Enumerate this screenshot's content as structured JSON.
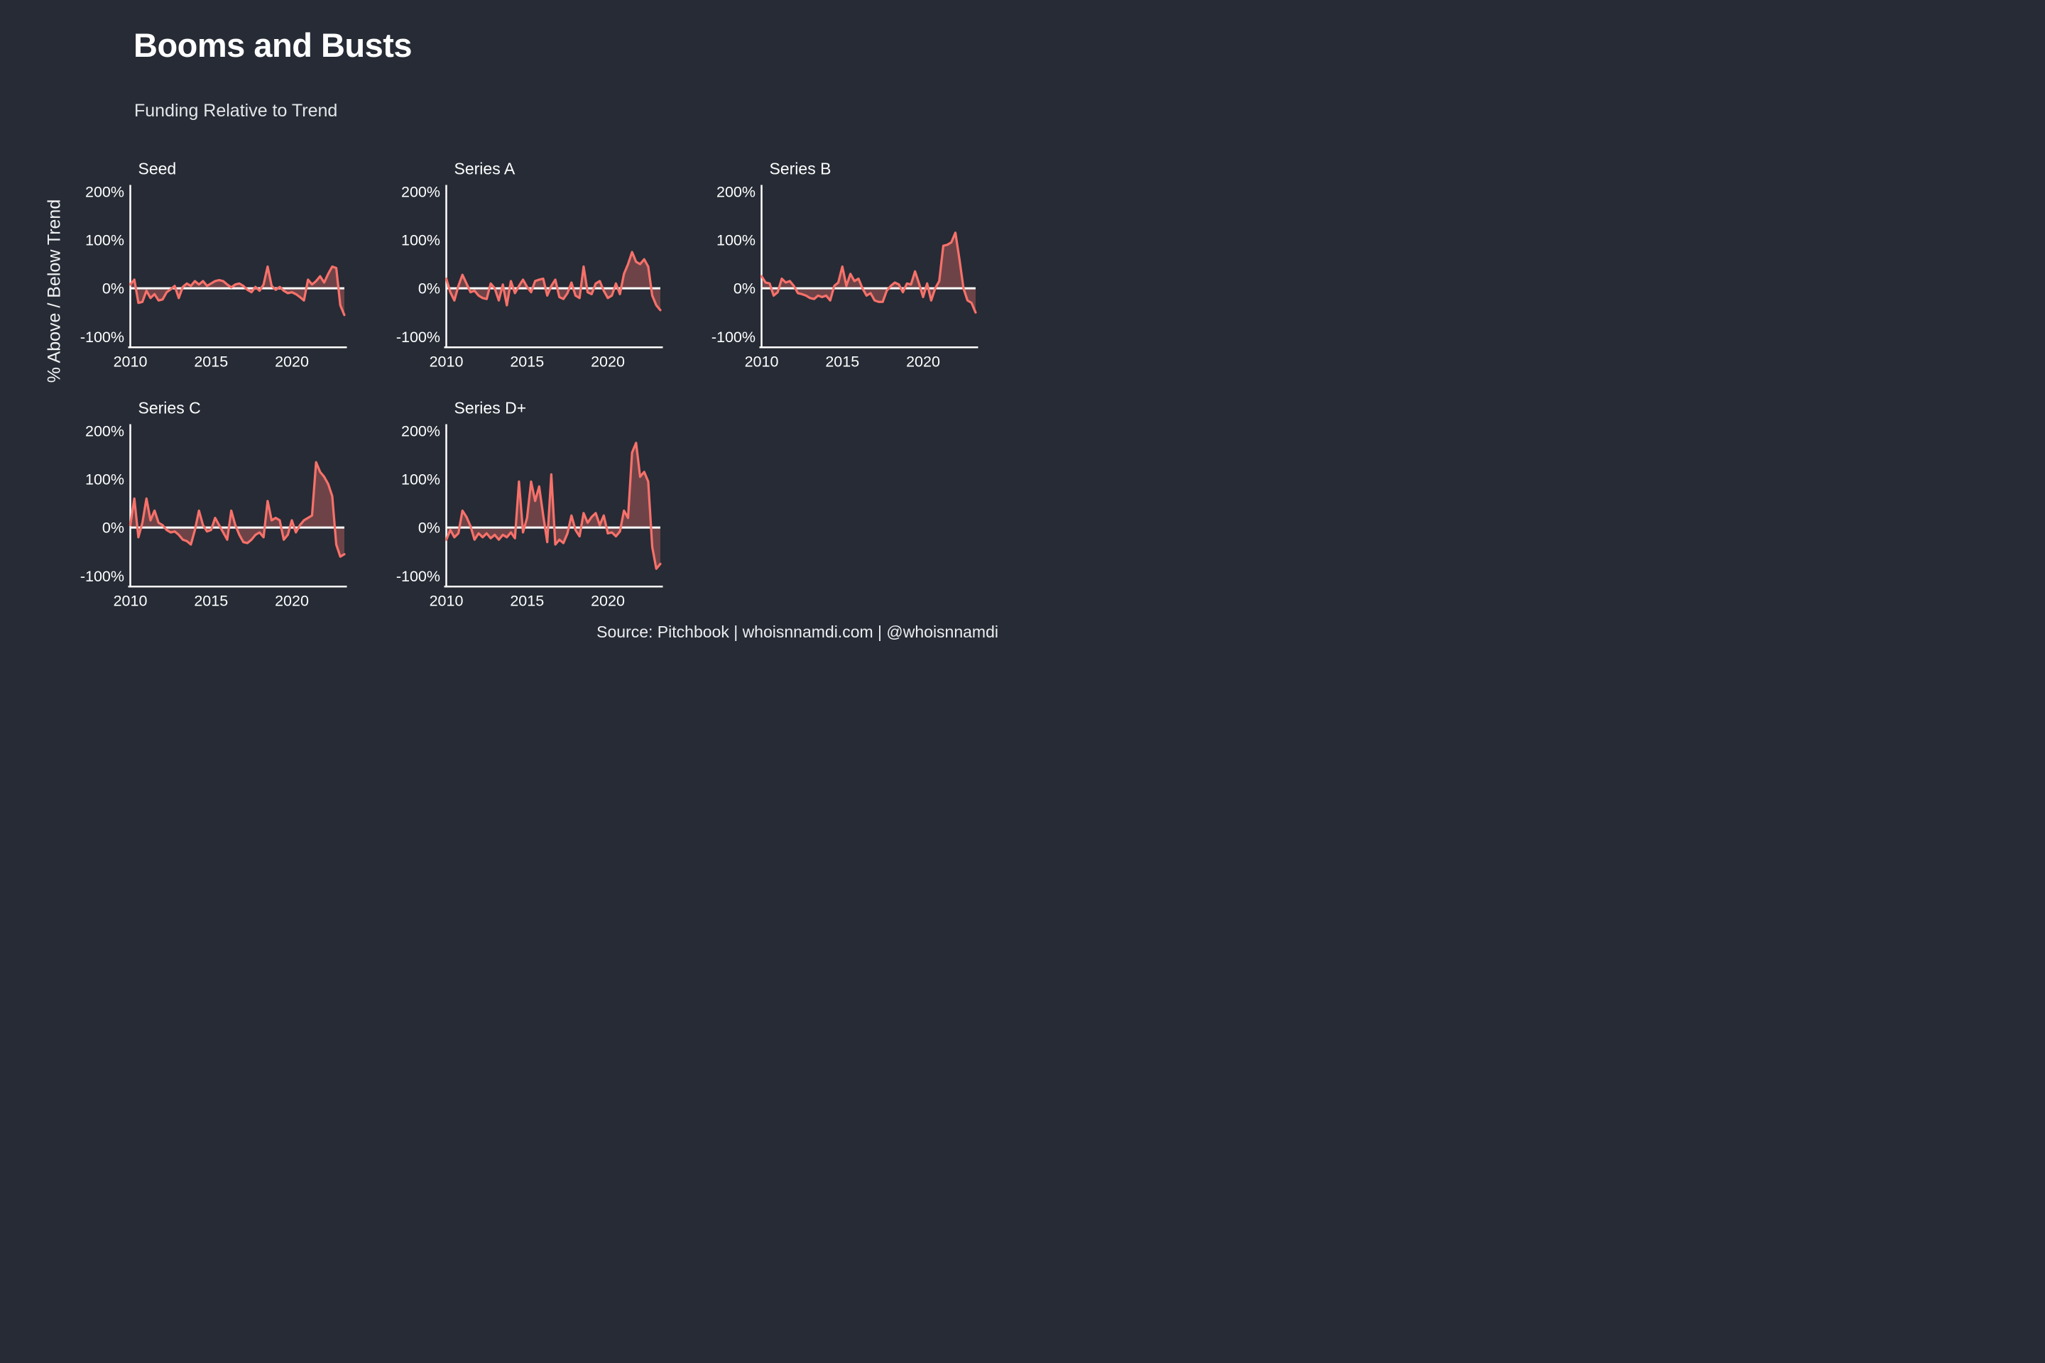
{
  "header": {
    "title": "Booms and Busts",
    "subtitle": "Funding Relative to Trend"
  },
  "y_axis_label": "% Above / Below Trend",
  "source": "Source: Pitchbook | whoisnnamdi.com | @whoisnnamdi",
  "colors": {
    "background": "#262B35",
    "line": "#F7716A",
    "fill_opacity": 0.35,
    "axis": "#FFFFFF",
    "text": "#FFFFFF"
  },
  "axes": {
    "y_ticks": [
      "200%",
      "100%",
      "0%",
      "-100%"
    ],
    "y_tick_values": [
      200,
      100,
      0,
      -100
    ],
    "x_ticks": [
      "2010",
      "2015",
      "2020"
    ],
    "x_tick_values": [
      2010,
      2015,
      2020
    ],
    "y_domain": [
      -120,
      210
    ],
    "x_domain": [
      2010,
      2023.25
    ],
    "grid": "off",
    "zero_line": true
  },
  "chart_data": [
    {
      "type": "area",
      "title": "Seed",
      "ylabel": "% Above / Below Trend",
      "xlabel": "",
      "unit": "percent",
      "x_start": 2010.0,
      "x_step": 0.25,
      "ylim": [
        -120,
        210
      ],
      "values": [
        8,
        18,
        -30,
        -28,
        -5,
        -20,
        -12,
        -25,
        -23,
        -8,
        -2,
        5,
        -20,
        3,
        10,
        5,
        15,
        8,
        15,
        5,
        10,
        15,
        17,
        15,
        8,
        2,
        8,
        10,
        5,
        -3,
        -8,
        3,
        -5,
        8,
        45,
        5,
        -3,
        3,
        -5,
        -10,
        -8,
        -12,
        -18,
        -25,
        18,
        8,
        15,
        25,
        12,
        30,
        45,
        42,
        -35,
        -55
      ]
    },
    {
      "type": "area",
      "title": "Series A",
      "ylabel": "% Above / Below Trend",
      "xlabel": "",
      "unit": "percent",
      "x_start": 2010.0,
      "x_step": 0.25,
      "ylim": [
        -120,
        210
      ],
      "values": [
        20,
        -8,
        -25,
        5,
        28,
        10,
        -8,
        -5,
        -15,
        -20,
        -22,
        10,
        0,
        -25,
        8,
        -35,
        15,
        -10,
        5,
        18,
        3,
        -8,
        15,
        18,
        20,
        -15,
        5,
        18,
        -18,
        -22,
        -10,
        12,
        -15,
        -20,
        45,
        -8,
        -12,
        10,
        15,
        -5,
        -20,
        -15,
        10,
        -12,
        30,
        50,
        75,
        55,
        50,
        60,
        45,
        -15,
        -35,
        -45
      ]
    },
    {
      "type": "area",
      "title": "Series B",
      "ylabel": "% Above / Below Trend",
      "xlabel": "",
      "unit": "percent",
      "x_start": 2010.0,
      "x_step": 0.25,
      "ylim": [
        -120,
        210
      ],
      "values": [
        25,
        12,
        10,
        -15,
        -8,
        20,
        12,
        15,
        5,
        -10,
        -12,
        -15,
        -20,
        -22,
        -15,
        -18,
        -15,
        -25,
        5,
        12,
        45,
        5,
        30,
        15,
        20,
        0,
        -15,
        -10,
        -25,
        -28,
        -28,
        -5,
        5,
        12,
        8,
        -8,
        10,
        8,
        35,
        10,
        -18,
        10,
        -25,
        0,
        15,
        88,
        90,
        95,
        115,
        60,
        0,
        -25,
        -30,
        -50
      ]
    },
    {
      "type": "area",
      "title": "Series C",
      "ylabel": "% Above / Below Trend",
      "xlabel": "",
      "unit": "percent",
      "x_start": 2010.0,
      "x_step": 0.25,
      "ylim": [
        -120,
        210
      ],
      "values": [
        5,
        60,
        -20,
        10,
        60,
        15,
        35,
        10,
        5,
        -5,
        -10,
        -8,
        -15,
        -25,
        -28,
        -35,
        -5,
        35,
        5,
        -8,
        -5,
        20,
        5,
        -10,
        -25,
        35,
        5,
        -15,
        -30,
        -32,
        -25,
        -15,
        -10,
        -20,
        55,
        15,
        20,
        15,
        -25,
        -15,
        15,
        -10,
        5,
        15,
        20,
        25,
        135,
        115,
        105,
        90,
        65,
        -35,
        -60,
        -55
      ]
    },
    {
      "type": "area",
      "title": "Series D+",
      "ylabel": "% Above / Below Trend",
      "xlabel": "",
      "unit": "percent",
      "x_start": 2010.0,
      "x_step": 0.25,
      "ylim": [
        -120,
        210
      ],
      "values": [
        -25,
        -5,
        -20,
        -12,
        35,
        22,
        3,
        -25,
        -12,
        -20,
        -12,
        -22,
        -15,
        -25,
        -15,
        -20,
        -10,
        -22,
        95,
        -10,
        20,
        95,
        55,
        85,
        25,
        -30,
        110,
        -35,
        -25,
        -32,
        -12,
        25,
        -5,
        -18,
        30,
        10,
        22,
        30,
        5,
        25,
        -12,
        -10,
        -18,
        -8,
        35,
        20,
        155,
        175,
        105,
        115,
        95,
        -40,
        -85,
        -75
      ]
    }
  ]
}
